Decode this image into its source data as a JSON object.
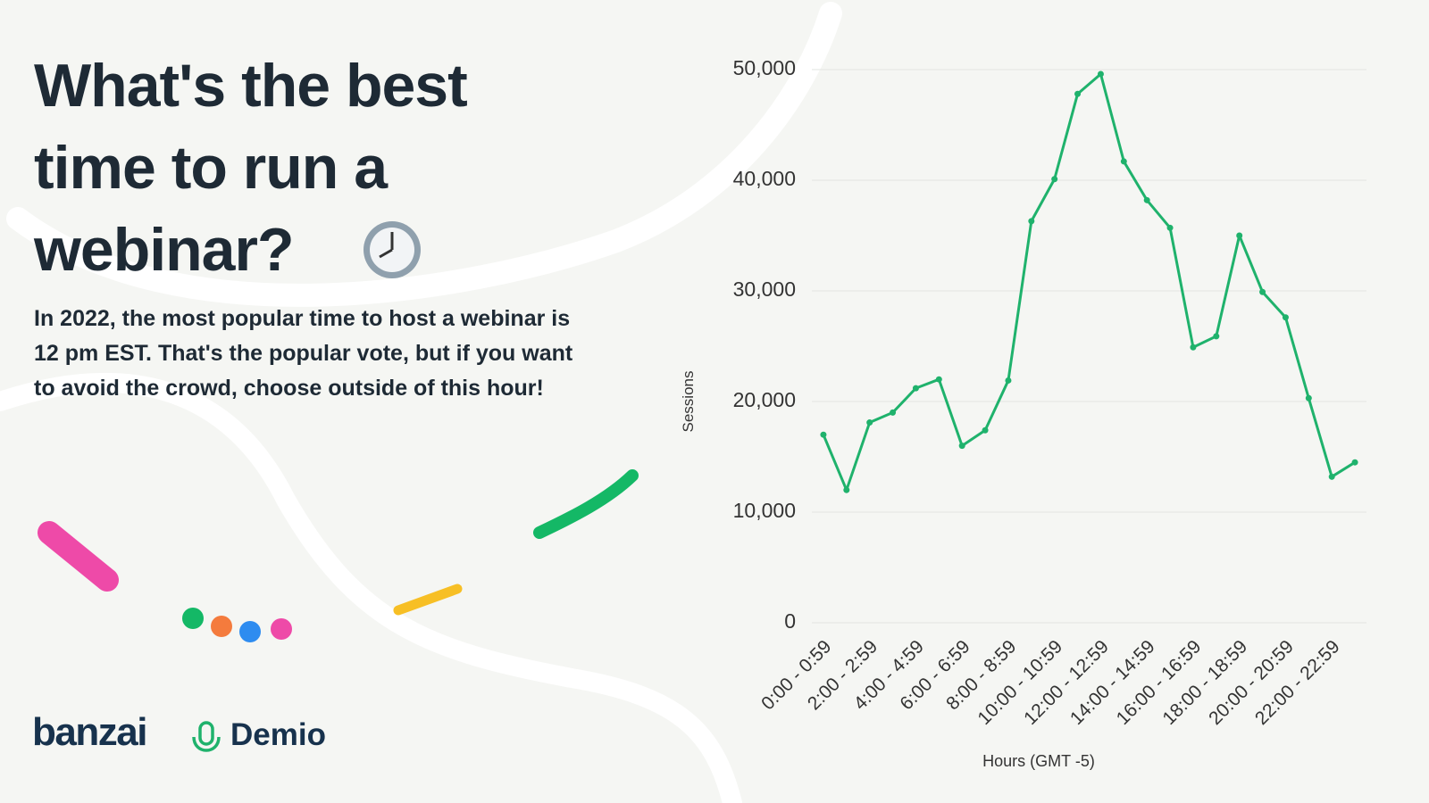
{
  "header": {
    "title_lines": [
      "What's the best",
      "time to run a",
      "webinar?"
    ],
    "subtitle_lines": [
      "In 2022, the most popular time to host a webinar is",
      "12 pm EST. That's the popular vote, but if you want",
      "to avoid the crowd, choose outside of this hour!"
    ]
  },
  "logos": [
    "banzai",
    "Demio"
  ],
  "chart_data": {
    "type": "line",
    "x_label": "Hours (GMT -5)",
    "y_label": "Sessions",
    "categories": [
      "0:00 - 0:59",
      null,
      "2:00 - 2:59",
      null,
      "4:00 - 4:59",
      null,
      "6:00 - 6:59",
      null,
      "8:00 - 8:59",
      null,
      "10:00 - 10:59",
      null,
      "12:00 - 12:59",
      null,
      "14:00 - 14:59",
      null,
      "16:00 - 16:59",
      null,
      "18:00 - 18:59",
      null,
      "20:00 - 20:59",
      null,
      "22:00 - 22:59",
      null
    ],
    "values": [
      17000,
      12000,
      18100,
      19000,
      21200,
      22000,
      16000,
      17400,
      21900,
      36300,
      40100,
      47800,
      49600,
      41700,
      38200,
      35700,
      24900,
      25900,
      35000,
      29900,
      27600,
      20300,
      13200,
      14500
    ],
    "color": "#1fb26c",
    "ylim": [
      0,
      50000
    ],
    "yticks": [
      0,
      {
        "value": 10000,
        "label": "10,000"
      },
      {
        "value": 20000,
        "label": "20,000"
      },
      {
        "value": 30000,
        "label": "30,000"
      },
      {
        "value": 40000,
        "label": "40,000"
      },
      {
        "value": 50000,
        "label": "50,000"
      }
    ],
    "grid": true
  }
}
